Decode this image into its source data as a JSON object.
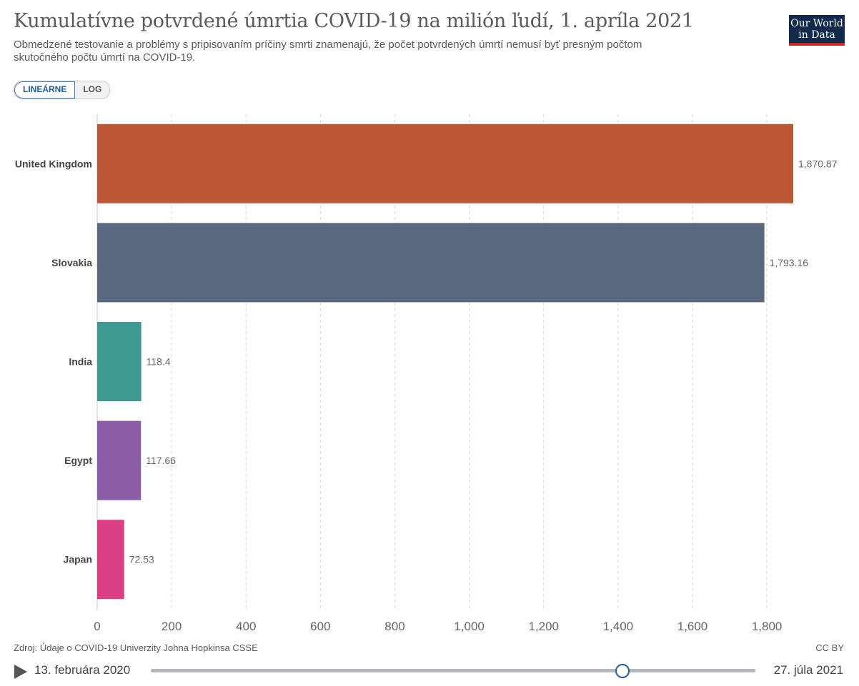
{
  "header": {
    "title": "Kumulatívne potvrdené úmrtia COVID-19 na milión ľudí, 1. apríla 2021",
    "subtitle": "Obmedzené testovanie a problémy s pripisovaním príčiny smrti znamenajú, že počet potvrdených úmrtí nemusí byť presným počtom skutočného počtu úmrtí na COVID-19.",
    "logo_line1": "Our World",
    "logo_line2": "in Data"
  },
  "controls": {
    "linear_label": "LINEÁRNE",
    "log_label": "LOG",
    "active_scale": "linear"
  },
  "chart_data": {
    "type": "bar",
    "orientation": "horizontal",
    "categories": [
      "United Kingdom",
      "Slovakia",
      "India",
      "Egypt",
      "Japan"
    ],
    "values": [
      1870.87,
      1793.16,
      118.4,
      117.66,
      72.53
    ],
    "value_labels": [
      "1,870.87",
      "1,793.16",
      "118.4",
      "117.66",
      "72.53"
    ],
    "colors": [
      "#be5735",
      "#5a687f",
      "#3e9a90",
      "#895ea6",
      "#db3f84"
    ],
    "xlim": [
      0,
      1870.87
    ],
    "xticks": [
      0,
      200,
      400,
      600,
      800,
      1000,
      1200,
      1400,
      1600,
      1800
    ],
    "xtick_labels": [
      "0",
      "200",
      "400",
      "600",
      "800",
      "1,000",
      "1,200",
      "1,400",
      "1,600",
      "1,800"
    ],
    "grid": "vertical dashed"
  },
  "footer": {
    "source": "Zdroj: Údaje o COVID-19 Univerzity Johna Hopkinsa CSSE",
    "license": "CC BY"
  },
  "timeline": {
    "start_label": "13. februára 2020",
    "end_label": "27. júla 2021",
    "position_fraction": 0.78
  }
}
